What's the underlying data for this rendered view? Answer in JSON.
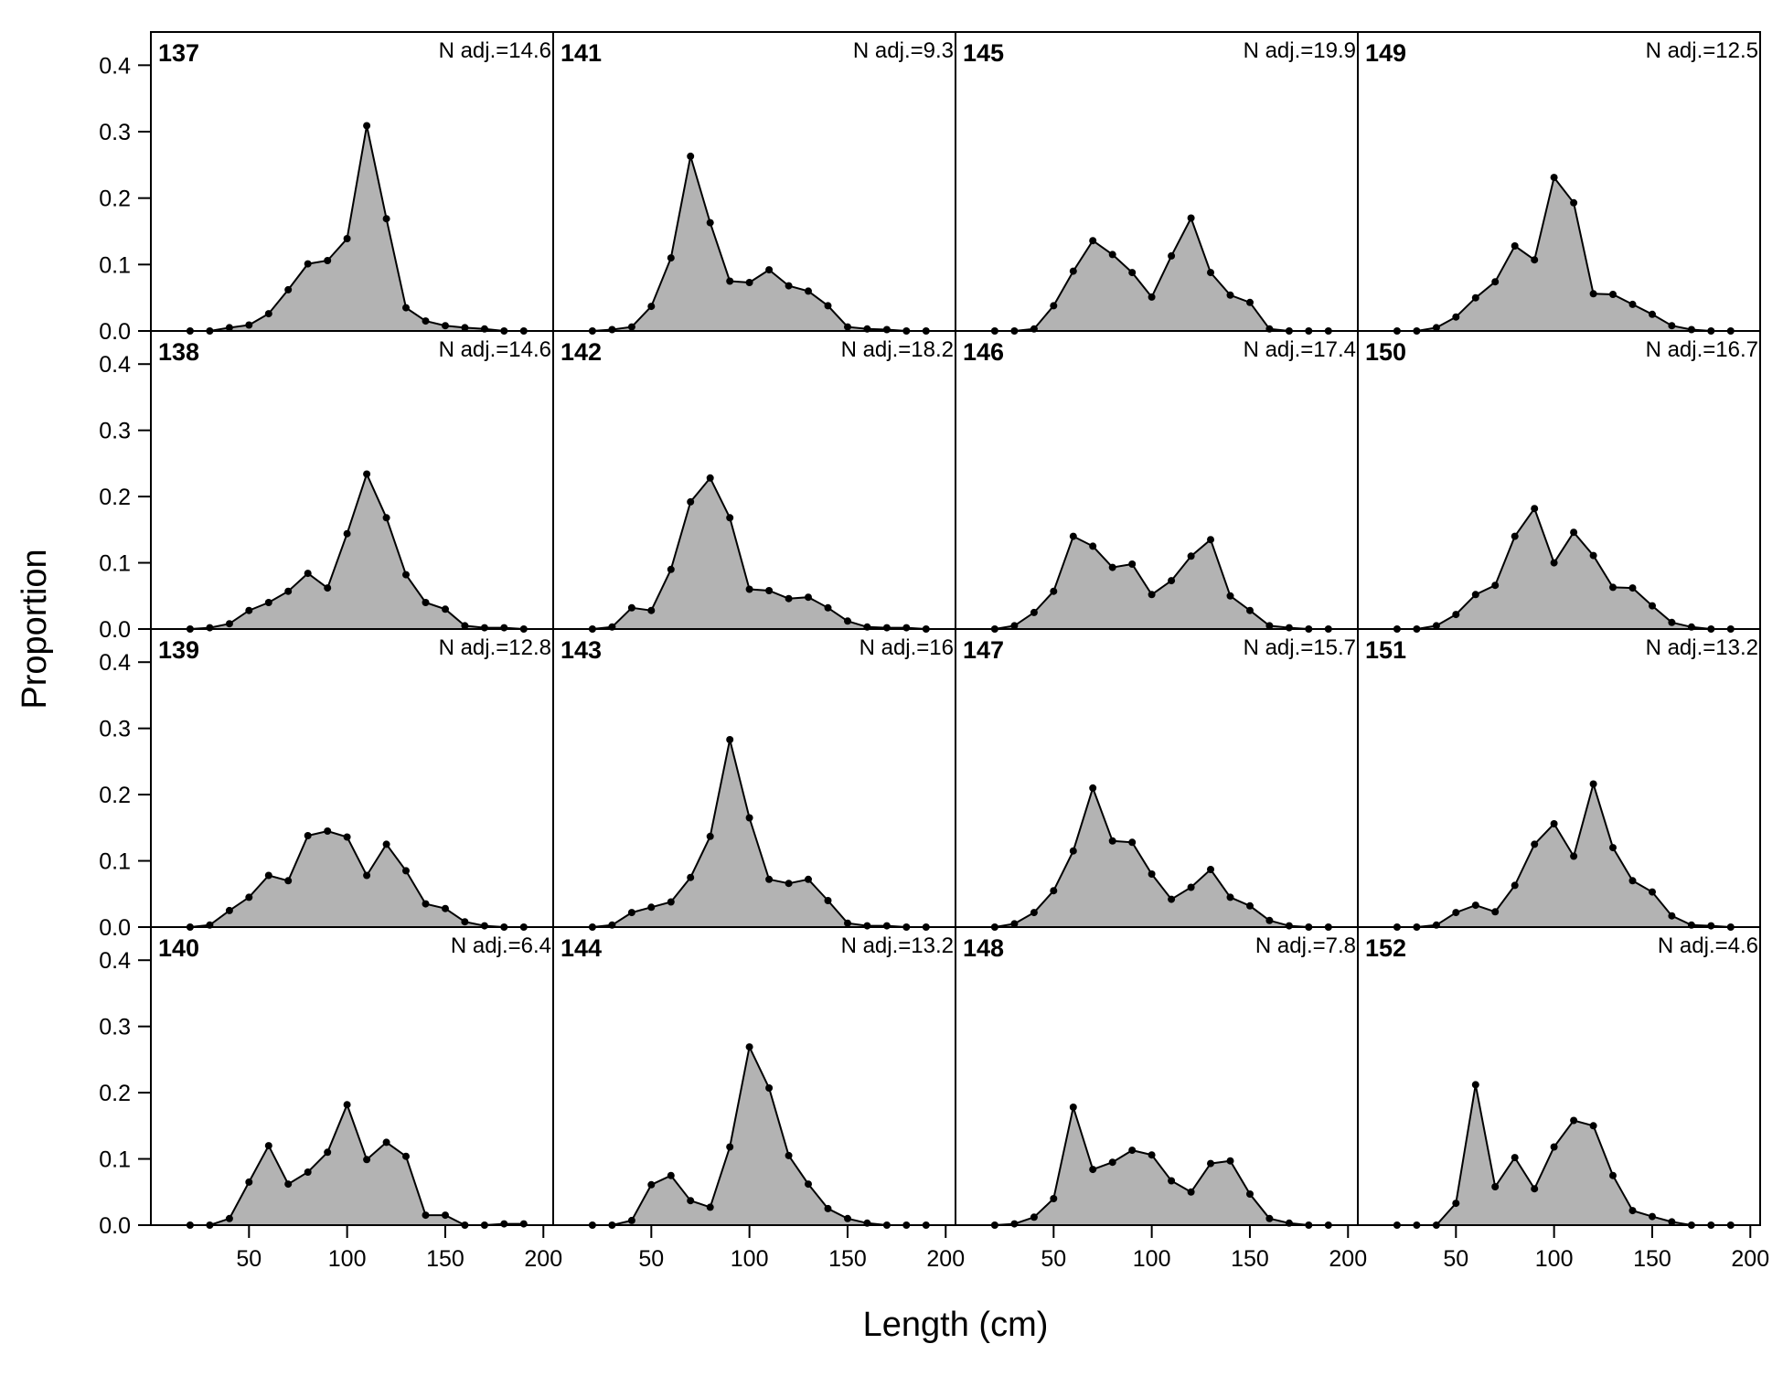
{
  "figure": {
    "xlabel": "Length (cm)",
    "ylabel": "Proportion"
  },
  "chart_data": {
    "type": "area",
    "layout": "4x4 panel grid, panels ordered down columns",
    "xlim": [
      0,
      205
    ],
    "ylim": [
      0,
      0.45
    ],
    "x_ticks": [
      "50",
      "100",
      "150",
      "200"
    ],
    "y_ticks": [
      "0.0",
      "0.1",
      "0.2",
      "0.3",
      "0.4"
    ],
    "xlabel": "Length (cm)",
    "ylabel": "Proportion",
    "grid": false,
    "x": [
      20,
      30,
      40,
      50,
      60,
      70,
      80,
      90,
      100,
      110,
      120,
      130,
      140,
      150,
      160,
      170,
      180,
      190
    ],
    "fill_color": "#b3b3b3",
    "line_color": "#000000",
    "panels": [
      {
        "id": "137",
        "n_adj": "N adj.=14.6",
        "values": [
          0,
          0,
          0.005,
          0.009,
          0.026,
          0.062,
          0.101,
          0.106,
          0.139,
          0.309,
          0.169,
          0.035,
          0.015,
          0.008,
          0.005,
          0.003,
          0,
          0
        ]
      },
      {
        "id": "138",
        "n_adj": "N adj.=14.6",
        "values": [
          0,
          0.002,
          0.008,
          0.028,
          0.04,
          0.057,
          0.084,
          0.062,
          0.144,
          0.234,
          0.168,
          0.082,
          0.04,
          0.03,
          0.005,
          0.002,
          0.002,
          0
        ]
      },
      {
        "id": "139",
        "n_adj": "N adj.=12.8",
        "values": [
          0,
          0.003,
          0.025,
          0.045,
          0.078,
          0.07,
          0.138,
          0.145,
          0.136,
          0.078,
          0.125,
          0.085,
          0.035,
          0.028,
          0.008,
          0.002,
          0,
          0
        ]
      },
      {
        "id": "140",
        "n_adj": "N adj.=6.4",
        "values": [
          0,
          0,
          0.01,
          0.065,
          0.12,
          0.062,
          0.08,
          0.11,
          0.182,
          0.099,
          0.125,
          0.104,
          0.015,
          0.015,
          0,
          0,
          0.002,
          0.002
        ]
      },
      {
        "id": "141",
        "n_adj": "N adj.=9.3",
        "values": [
          0,
          0.002,
          0.006,
          0.037,
          0.11,
          0.263,
          0.163,
          0.075,
          0.073,
          0.092,
          0.068,
          0.06,
          0.038,
          0.006,
          0.003,
          0.002,
          0,
          0
        ]
      },
      {
        "id": "142",
        "n_adj": "N adj.=18.2",
        "values": [
          0,
          0.003,
          0.032,
          0.028,
          0.09,
          0.192,
          0.228,
          0.168,
          0.06,
          0.058,
          0.046,
          0.048,
          0.032,
          0.012,
          0.003,
          0.002,
          0.002,
          0
        ]
      },
      {
        "id": "143",
        "n_adj": "N adj.=16",
        "values": [
          0,
          0.003,
          0.022,
          0.03,
          0.038,
          0.075,
          0.137,
          0.283,
          0.165,
          0.072,
          0.066,
          0.072,
          0.04,
          0.006,
          0.002,
          0.002,
          0,
          0
        ]
      },
      {
        "id": "144",
        "n_adj": "N adj.=13.2",
        "values": [
          0,
          0,
          0.007,
          0.061,
          0.075,
          0.037,
          0.027,
          0.118,
          0.269,
          0.207,
          0.105,
          0.062,
          0.025,
          0.01,
          0.003,
          0,
          0,
          0
        ]
      },
      {
        "id": "145",
        "n_adj": "N adj.=19.9",
        "values": [
          0,
          0,
          0.003,
          0.038,
          0.09,
          0.136,
          0.115,
          0.088,
          0.051,
          0.113,
          0.17,
          0.088,
          0.054,
          0.043,
          0.003,
          0,
          0,
          0
        ]
      },
      {
        "id": "146",
        "n_adj": "N adj.=17.4",
        "values": [
          0,
          0.005,
          0.025,
          0.057,
          0.14,
          0.125,
          0.093,
          0.098,
          0.052,
          0.073,
          0.11,
          0.135,
          0.05,
          0.028,
          0.005,
          0.002,
          0,
          0
        ]
      },
      {
        "id": "147",
        "n_adj": "N adj.=15.7",
        "values": [
          0,
          0.005,
          0.022,
          0.055,
          0.115,
          0.21,
          0.13,
          0.128,
          0.08,
          0.042,
          0.06,
          0.087,
          0.045,
          0.032,
          0.01,
          0.002,
          0,
          0
        ]
      },
      {
        "id": "148",
        "n_adj": "N adj.=7.8",
        "values": [
          0,
          0.002,
          0.012,
          0.04,
          0.178,
          0.084,
          0.095,
          0.113,
          0.106,
          0.067,
          0.05,
          0.093,
          0.097,
          0.047,
          0.01,
          0.003,
          0,
          0
        ]
      },
      {
        "id": "149",
        "n_adj": "N adj.=12.5",
        "values": [
          0,
          0,
          0.005,
          0.021,
          0.05,
          0.074,
          0.128,
          0.107,
          0.231,
          0.193,
          0.056,
          0.055,
          0.04,
          0.025,
          0.008,
          0.002,
          0,
          0
        ]
      },
      {
        "id": "150",
        "n_adj": "N adj.=16.7",
        "values": [
          0,
          0,
          0.005,
          0.022,
          0.052,
          0.066,
          0.14,
          0.182,
          0.1,
          0.146,
          0.111,
          0.063,
          0.062,
          0.035,
          0.01,
          0.003,
          0,
          0
        ]
      },
      {
        "id": "151",
        "n_adj": "N adj.=13.2",
        "values": [
          0,
          0,
          0.003,
          0.022,
          0.033,
          0.023,
          0.063,
          0.125,
          0.156,
          0.107,
          0.216,
          0.12,
          0.07,
          0.053,
          0.017,
          0.003,
          0.002,
          0
        ]
      },
      {
        "id": "152",
        "n_adj": "N adj.=4.6",
        "values": [
          0,
          0,
          0,
          0.033,
          0.212,
          0.058,
          0.102,
          0.055,
          0.118,
          0.158,
          0.15,
          0.075,
          0.022,
          0.013,
          0.005,
          0,
          0,
          0
        ]
      }
    ]
  }
}
